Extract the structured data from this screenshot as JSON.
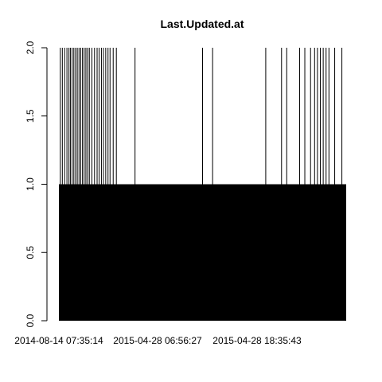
{
  "chart_data": {
    "type": "bar",
    "title": "Last.Updated.at",
    "xlabel": "",
    "ylabel": "",
    "ylim": [
      0,
      2
    ],
    "yticks": [
      "0.0",
      "0.5",
      "1.0",
      "1.5",
      "2.0"
    ],
    "x_tick_labels": [
      "2014-08-14 07:35:14",
      "2015-04-28 06:56:27",
      "2015-04-28 18:35:43"
    ],
    "baseline_value": 1,
    "peak_value": 2,
    "categories_note": "",
    "values_with_count_2_at_fraction": [
      0.005,
      0.012,
      0.02,
      0.028,
      0.035,
      0.04,
      0.046,
      0.052,
      0.058,
      0.064,
      0.07,
      0.076,
      0.082,
      0.088,
      0.094,
      0.1,
      0.106,
      0.115,
      0.124,
      0.133,
      0.14,
      0.148,
      0.155,
      0.163,
      0.171,
      0.178,
      0.189,
      0.2,
      0.265,
      0.5,
      0.535,
      0.72,
      0.775,
      0.793,
      0.838,
      0.856,
      0.876,
      0.89,
      0.9,
      0.91,
      0.92,
      0.93,
      0.94,
      0.96,
      0.985
    ]
  }
}
